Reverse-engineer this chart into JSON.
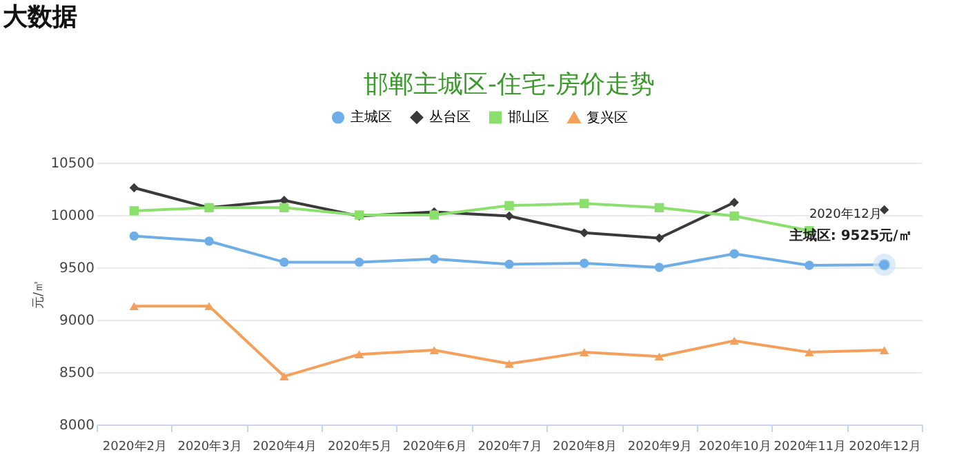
{
  "chart_data": {
    "type": "line",
    "title": "邯郸主城区-住宅-房价走势",
    "ylabel": "元/㎡",
    "categories": [
      "2020年2月",
      "2020年3月",
      "2020年4月",
      "2020年5月",
      "2020年6月",
      "2020年7月",
      "2020年8月",
      "2020年9月",
      "2020年10月",
      "2020年11月",
      "2020年12月"
    ],
    "series": [
      {
        "name": "主城区",
        "color": "#6eaee8",
        "marker": "circle",
        "values": [
          9800,
          9750,
          9550,
          9550,
          9580,
          9530,
          9540,
          9500,
          9630,
          9520,
          9525
        ]
      },
      {
        "name": "丛台区",
        "color": "#3a3a3a",
        "marker": "diamond",
        "values": [
          10260,
          10070,
          10140,
          9990,
          10030,
          9990,
          9830,
          9780,
          10120,
          null,
          10050
        ]
      },
      {
        "name": "邯山区",
        "color": "#8be06d",
        "marker": "square",
        "values": [
          10040,
          10070,
          10070,
          10000,
          10000,
          10090,
          10110,
          10070,
          9990,
          9850,
          null
        ]
      },
      {
        "name": "复兴区",
        "color": "#f5a05a",
        "marker": "triangle",
        "values": [
          9130,
          9130,
          8460,
          8670,
          8710,
          8580,
          8690,
          8650,
          8800,
          8690,
          8710
        ]
      }
    ],
    "ylim": [
      8000,
      10500
    ],
    "yticks": [
      8000,
      8500,
      9000,
      9500,
      10000,
      10500
    ],
    "grid": "y",
    "legend": "top",
    "annotations": [
      "大数据",
      "2020年12月",
      {
        "text": "主城区: 9525元/㎡",
        "x": "2020年12月",
        "y": 9525
      }
    ]
  }
}
